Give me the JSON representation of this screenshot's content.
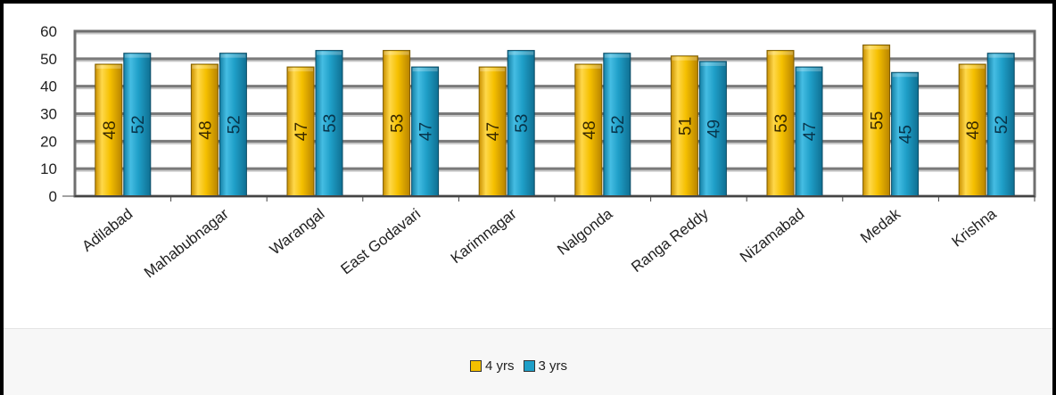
{
  "chart_data": {
    "type": "bar",
    "categories": [
      "Adilabad",
      "Mahabubnagar",
      "Warangal",
      "East Godavari",
      "Karimnagar",
      "Nalgonda",
      "Ranga Reddy",
      "Nizamabad",
      "Medak",
      "Krishna"
    ],
    "series": [
      {
        "name": "4 yrs",
        "color": "#f5c000",
        "values": [
          48,
          48,
          47,
          53,
          47,
          48,
          51,
          53,
          55,
          48
        ]
      },
      {
        "name": "3 yrs",
        "color": "#1f9fc8",
        "values": [
          52,
          52,
          53,
          47,
          53,
          52,
          49,
          47,
          45,
          52
        ]
      }
    ],
    "ylim": [
      0,
      60
    ],
    "yticks": [
      "0",
      "10",
      "20",
      "30",
      "40",
      "50",
      "60"
    ],
    "grid": true,
    "data_labels": true,
    "legend_position": "bottom",
    "title": "",
    "xlabel": "",
    "ylabel": ""
  }
}
